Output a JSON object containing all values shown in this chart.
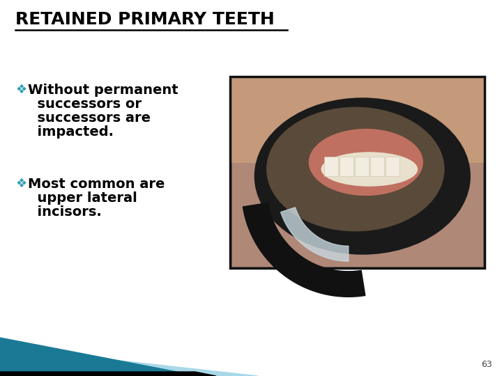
{
  "title": "RETAINED PRIMARY TEETH",
  "title_fontsize": 18,
  "title_color": "#000000",
  "bullet_color": "#2E9DB0",
  "bullet_text_color": "#000000",
  "bullet1_lines": [
    "Without permanent",
    "successors or",
    "successors are",
    "impacted."
  ],
  "bullet2_lines": [
    "Most common are",
    "upper lateral",
    "incisors."
  ],
  "bullet_fontsize": 14,
  "background_color": "#ffffff",
  "page_number": "63",
  "page_number_fontsize": 9,
  "page_number_color": "#444444",
  "footer_dark_teal": "#1A7A96",
  "footer_light_blue": "#A8D8E8",
  "footer_black": "#000000",
  "img_border_color": "#111111",
  "img_bg": "#8a7060"
}
